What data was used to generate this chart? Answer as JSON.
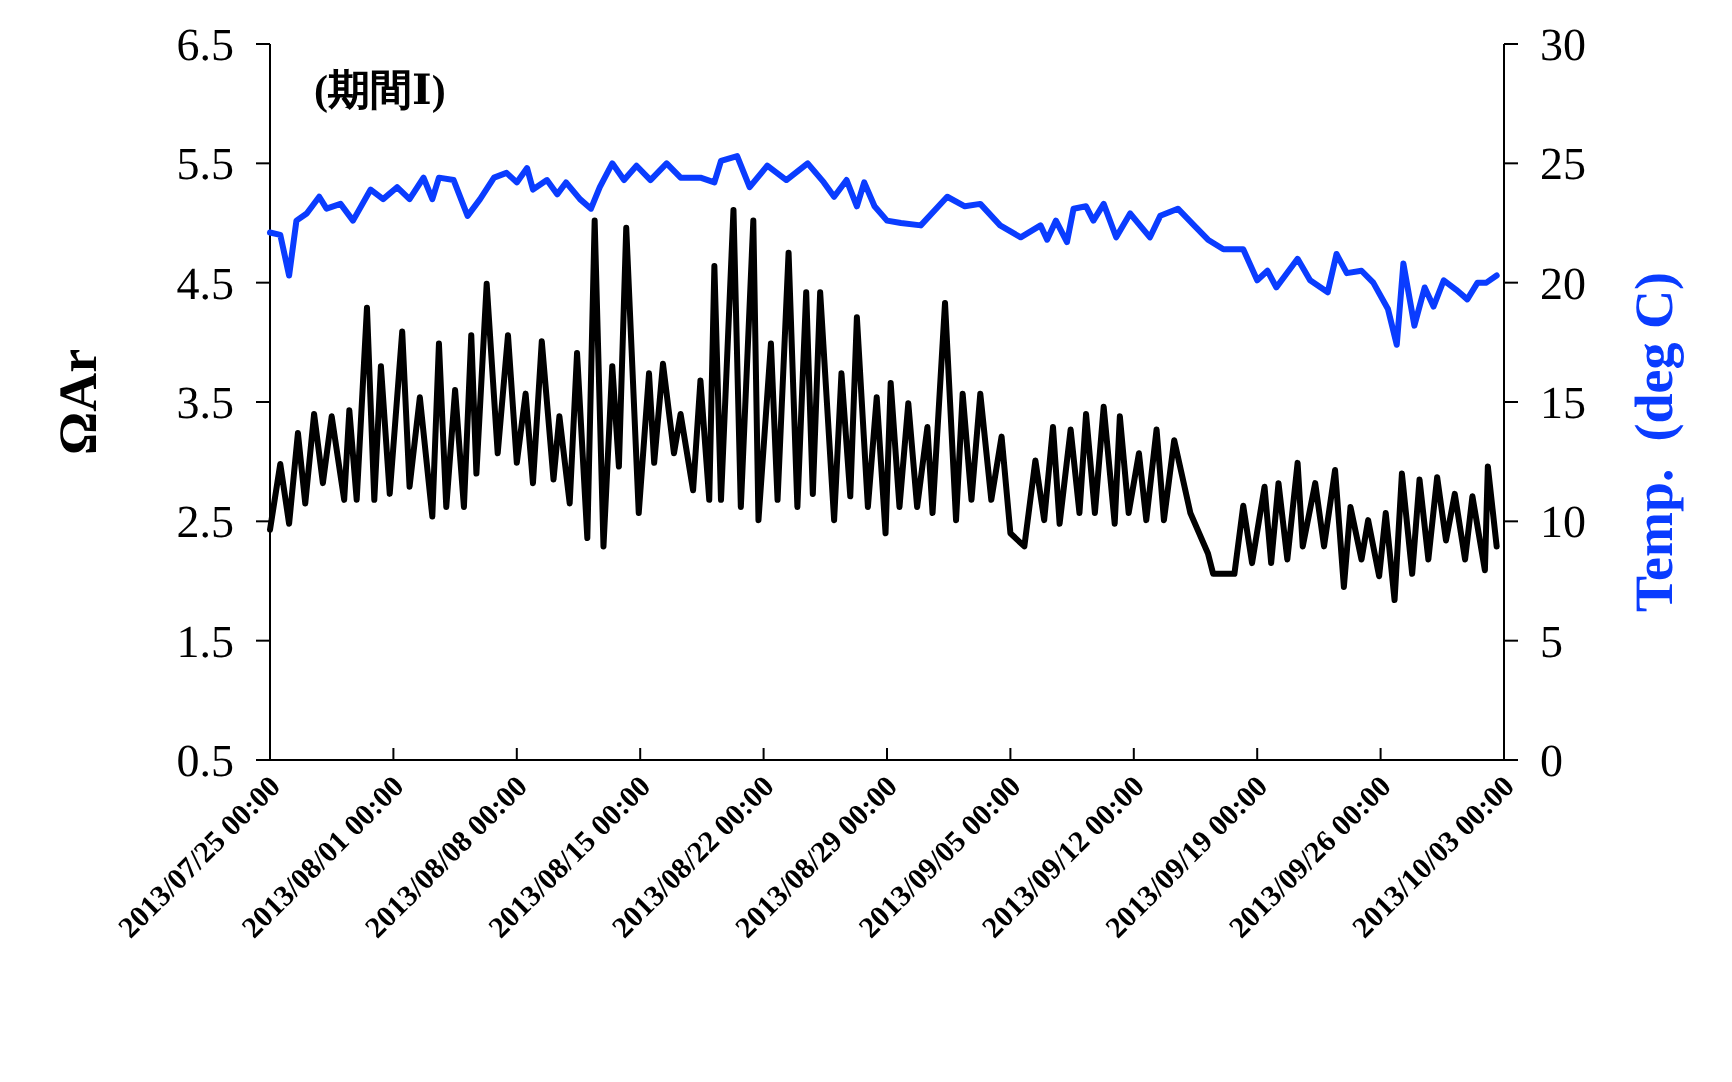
{
  "chart_data": {
    "type": "line",
    "ylabel": "ΩAr",
    "y2label": "Temp.  (deg C)",
    "annotations": [
      "(期間Ⅰ)"
    ],
    "xlim": [
      "2013-07-25T00:00",
      "2013-10-03T00:00"
    ],
    "xticks": [
      {
        "value": "2013-07-25T00:00",
        "label": "2013/07/25 00:00"
      },
      {
        "value": "2013-08-01T00:00",
        "label": "2013/08/01 00:00"
      },
      {
        "value": "2013-08-08T00:00",
        "label": "2013/08/08 00:00"
      },
      {
        "value": "2013-08-15T00:00",
        "label": "2013/08/15 00:00"
      },
      {
        "value": "2013-08-22T00:00",
        "label": "2013/08/22 00:00"
      },
      {
        "value": "2013-08-29T00:00",
        "label": "2013/08/29 00:00"
      },
      {
        "value": "2013-09-05T00:00",
        "label": "2013/09/05 00:00"
      },
      {
        "value": "2013-09-12T00:00",
        "label": "2013/09/12 00:00"
      },
      {
        "value": "2013-09-19T00:00",
        "label": "2013/09/19 00:00"
      },
      {
        "value": "2013-09-26T00:00",
        "label": "2013/09/26 00:00"
      },
      {
        "value": "2013-10-03T00:00",
        "label": "2013/10/03 00:00"
      }
    ],
    "ylim": [
      0.5,
      6.5
    ],
    "yticks": [
      0.5,
      1.5,
      2.5,
      3.5,
      4.5,
      5.5,
      6.5
    ],
    "y2lim": [
      0,
      30
    ],
    "y2ticks": [
      0,
      5,
      10,
      15,
      20,
      25,
      30
    ],
    "series": [
      {
        "color": "#000000",
        "x": [
          "2013-07-25T00:00",
          "2013-07-25T14:00",
          "2013-07-26T02:00",
          "2013-07-26T14:00",
          "2013-07-27T00:00",
          "2013-07-27T12:00",
          "2013-07-28T00:00",
          "2013-07-28T12:00",
          "2013-07-29T05:00",
          "2013-07-29T12:00",
          "2013-07-29T22:00",
          "2013-07-30T12:00",
          "2013-07-30T22:00",
          "2013-07-31T07:00",
          "2013-07-31T19:00",
          "2013-08-01T12:00",
          "2013-08-01T22:00",
          "2013-08-02T12:00",
          "2013-08-03T05:00",
          "2013-08-03T14:00",
          "2013-08-04T00:00",
          "2013-08-04T12:00",
          "2013-08-05T00:00",
          "2013-08-05T10:00",
          "2013-08-05T17:00",
          "2013-08-06T07:00",
          "2013-08-06T22:00",
          "2013-08-07T12:00",
          "2013-08-08T00:00",
          "2013-08-08T12:00",
          "2013-08-08T22:00",
          "2013-08-09T10:00",
          "2013-08-10T02:00",
          "2013-08-10T10:00",
          "2013-08-11T00:00",
          "2013-08-11T10:00",
          "2013-08-12T00:00",
          "2013-08-12T10:00",
          "2013-08-12T22:00",
          "2013-08-13T10:00",
          "2013-08-13T19:00",
          "2013-08-14T05:00",
          "2013-08-14T22:00",
          "2013-08-15T12:00",
          "2013-08-15T19:00",
          "2013-08-16T07:00",
          "2013-08-16T22:00",
          "2013-08-17T07:00",
          "2013-08-18T00:00",
          "2013-08-18T10:00",
          "2013-08-18T22:00",
          "2013-08-19T05:00",
          "2013-08-19T14:00",
          "2013-08-20T07:00",
          "2013-08-20T17:00",
          "2013-08-21T10:00",
          "2013-08-21T17:00",
          "2013-08-22T10:00",
          "2013-08-22T19:00",
          "2013-08-23T10:00",
          "2013-08-23T22:00",
          "2013-08-24T10:00",
          "2013-08-24T19:00",
          "2013-08-25T05:00",
          "2013-08-26T00:00",
          "2013-08-26T10:00",
          "2013-08-26T22:00",
          "2013-08-27T07:00",
          "2013-08-27T22:00",
          "2013-08-28T10:00",
          "2013-08-28T22:00",
          "2013-08-29T05:00",
          "2013-08-29T17:00",
          "2013-08-30T05:00",
          "2013-08-30T17:00",
          "2013-08-31T07:00",
          "2013-08-31T14:00",
          "2013-09-01T07:00",
          "2013-09-01T22:00",
          "2013-09-02T07:00",
          "2013-09-02T19:00",
          "2013-09-03T07:00",
          "2013-09-03T22:00",
          "2013-09-04T12:00",
          "2013-09-05T00:00",
          "2013-09-05T19:00",
          "2013-09-06T10:00",
          "2013-09-06T22:00",
          "2013-09-07T10:00",
          "2013-09-07T19:00",
          "2013-09-08T10:00",
          "2013-09-08T22:00",
          "2013-09-09T07:00",
          "2013-09-09T19:00",
          "2013-09-10T07:00",
          "2013-09-10T22:00",
          "2013-09-11T05:00",
          "2013-09-11T17:00",
          "2013-09-12T07:00",
          "2013-09-12T17:00",
          "2013-09-13T07:00",
          "2013-09-13T17:00",
          "2013-09-14T07:00",
          "2013-09-15T05:00",
          "2013-09-16T05:00",
          "2013-09-16T12:00",
          "2013-09-17T17:00",
          "2013-09-18T05:00",
          "2013-09-18T17:00",
          "2013-09-19T10:00",
          "2013-09-19T19:00",
          "2013-09-20T05:00",
          "2013-09-20T17:00",
          "2013-09-21T07:00",
          "2013-09-21T14:00",
          "2013-09-22T07:00",
          "2013-09-22T19:00",
          "2013-09-23T10:00",
          "2013-09-23T22:00",
          "2013-09-24T07:00",
          "2013-09-24T22:00",
          "2013-09-25T07:00",
          "2013-09-25T22:00",
          "2013-09-26T07:00",
          "2013-09-26T19:00",
          "2013-09-27T05:00",
          "2013-09-27T19:00",
          "2013-09-28T05:00",
          "2013-09-28T17:00",
          "2013-09-29T05:00",
          "2013-09-29T17:00",
          "2013-09-30T05:00",
          "2013-09-30T19:00",
          "2013-10-01T05:00",
          "2013-10-01T22:00",
          "2013-10-02T02:00",
          "2013-10-02T14:00"
        ],
        "values": [
          2.43,
          2.98,
          2.48,
          3.24,
          2.65,
          3.4,
          2.82,
          3.38,
          2.68,
          3.43,
          2.68,
          4.29,
          2.68,
          3.8,
          2.73,
          4.09,
          2.79,
          3.54,
          2.54,
          3.99,
          2.62,
          3.6,
          2.62,
          4.06,
          2.9,
          4.49,
          3.07,
          4.06,
          2.99,
          3.57,
          2.82,
          4.01,
          2.85,
          3.38,
          2.65,
          3.91,
          2.36,
          5.02,
          2.29,
          3.8,
          2.96,
          4.96,
          2.57,
          3.74,
          2.99,
          3.82,
          3.07,
          3.4,
          2.76,
          3.68,
          2.68,
          4.64,
          2.68,
          5.11,
          2.62,
          5.02,
          2.51,
          3.99,
          2.68,
          4.75,
          2.62,
          4.42,
          2.73,
          4.42,
          2.51,
          3.74,
          2.71,
          4.21,
          2.62,
          3.54,
          2.4,
          3.66,
          2.62,
          3.49,
          2.62,
          3.29,
          2.57,
          4.33,
          2.51,
          3.57,
          2.68,
          3.57,
          2.68,
          3.21,
          2.4,
          2.29,
          3.01,
          2.51,
          3.29,
          2.48,
          3.27,
          2.57,
          3.4,
          2.57,
          3.46,
          2.48,
          3.38,
          2.57,
          3.07,
          2.51,
          3.27,
          2.51,
          3.18,
          2.57,
          2.23,
          2.06,
          2.06,
          2.63,
          2.15,
          2.79,
          2.15,
          2.82,
          2.18,
          2.99,
          2.29,
          2.82,
          2.29,
          2.93,
          1.95,
          2.62,
          2.18,
          2.51,
          2.04,
          2.57,
          1.84,
          2.9,
          2.06,
          2.85,
          2.18,
          2.87,
          2.34,
          2.73,
          2.18,
          2.71,
          2.09,
          2.96,
          2.29
        ]
      },
      {
        "color": "#0a3cff",
        "axis": "y2",
        "x": [
          "2013-07-25T00:00",
          "2013-07-25T14:00",
          "2013-07-26T02:00",
          "2013-07-26T12:00",
          "2013-07-27T02:00",
          "2013-07-27T19:00",
          "2013-07-28T05:00",
          "2013-07-29T00:00",
          "2013-07-29T17:00",
          "2013-07-30T17:00",
          "2013-07-31T10:00",
          "2013-08-01T05:00",
          "2013-08-01T22:00",
          "2013-08-02T17:00",
          "2013-08-03T05:00",
          "2013-08-03T14:00",
          "2013-08-04T10:00",
          "2013-08-05T05:00",
          "2013-08-05T22:00",
          "2013-08-06T17:00",
          "2013-08-07T10:00",
          "2013-08-08T00:00",
          "2013-08-08T14:00",
          "2013-08-08T22:00",
          "2013-08-09T17:00",
          "2013-08-10T07:00",
          "2013-08-10T19:00",
          "2013-08-11T14:00",
          "2013-08-12T05:00",
          "2013-08-12T17:00",
          "2013-08-13T10:00",
          "2013-08-14T02:00",
          "2013-08-14T19:00",
          "2013-08-15T14:00",
          "2013-08-16T12:00",
          "2013-08-17T07:00",
          "2013-08-18T10:00",
          "2013-08-19T05:00",
          "2013-08-19T14:00",
          "2013-08-20T12:00",
          "2013-08-21T05:00",
          "2013-08-22T05:00",
          "2013-08-23T07:00",
          "2013-08-24T12:00",
          "2013-08-25T10:00",
          "2013-08-26T00:00",
          "2013-08-26T17:00",
          "2013-08-27T07:00",
          "2013-08-27T17:00",
          "2013-08-28T07:00",
          "2013-08-29T00:00",
          "2013-08-29T19:00",
          "2013-08-30T22:00",
          "2013-09-01T10:00",
          "2013-09-02T10:00",
          "2013-09-03T07:00",
          "2013-09-04T10:00",
          "2013-09-05T14:00",
          "2013-09-06T17:00",
          "2013-09-07T02:00",
          "2013-09-07T14:00",
          "2013-09-08T05:00",
          "2013-09-08T14:00",
          "2013-09-09T07:00",
          "2013-09-09T17:00",
          "2013-09-10T07:00",
          "2013-09-11T00:00",
          "2013-09-11T19:00",
          "2013-09-12T22:00",
          "2013-09-13T12:00",
          "2013-09-14T12:00",
          "2013-09-15T10:00",
          "2013-09-16T05:00",
          "2013-09-17T02:00",
          "2013-09-18T05:00",
          "2013-09-19T00:00",
          "2013-09-19T14:00",
          "2013-09-20T02:00",
          "2013-09-21T07:00",
          "2013-09-22T00:00",
          "2013-09-23T00:00",
          "2013-09-23T12:00",
          "2013-09-24T02:00",
          "2013-09-24T22:00",
          "2013-09-25T14:00",
          "2013-09-26T10:00",
          "2013-09-26T22:00",
          "2013-09-27T07:00",
          "2013-09-27T22:00",
          "2013-09-28T12:00",
          "2013-09-29T00:00",
          "2013-09-29T14:00",
          "2013-09-30T07:00",
          "2013-09-30T22:00",
          "2013-10-01T12:00",
          "2013-10-02T00:00",
          "2013-10-02T14:00"
        ],
        "values": [
          22.1,
          22.0,
          20.3,
          22.6,
          22.9,
          23.6,
          23.1,
          23.3,
          22.6,
          23.9,
          23.5,
          24.0,
          23.5,
          24.4,
          23.5,
          24.4,
          24.3,
          22.8,
          23.5,
          24.4,
          24.6,
          24.2,
          24.8,
          23.9,
          24.3,
          23.7,
          24.2,
          23.5,
          23.1,
          24.0,
          25.0,
          24.3,
          24.9,
          24.3,
          25.0,
          24.4,
          24.4,
          24.2,
          25.1,
          25.3,
          24.0,
          24.9,
          24.3,
          25.0,
          24.2,
          23.6,
          24.3,
          23.2,
          24.2,
          23.2,
          22.6,
          22.5,
          22.4,
          23.6,
          23.2,
          23.3,
          22.4,
          21.9,
          22.4,
          21.8,
          22.6,
          21.7,
          23.1,
          23.2,
          22.6,
          23.3,
          21.9,
          22.9,
          21.9,
          22.8,
          23.1,
          22.4,
          21.8,
          21.4,
          21.4,
          20.1,
          20.5,
          19.8,
          21.0,
          20.1,
          19.6,
          21.2,
          20.4,
          20.5,
          20.0,
          18.9,
          17.4,
          20.8,
          18.2,
          19.8,
          19.0,
          20.1,
          19.7,
          19.3,
          20.0,
          20.0,
          20.3
        ]
      }
    ]
  }
}
